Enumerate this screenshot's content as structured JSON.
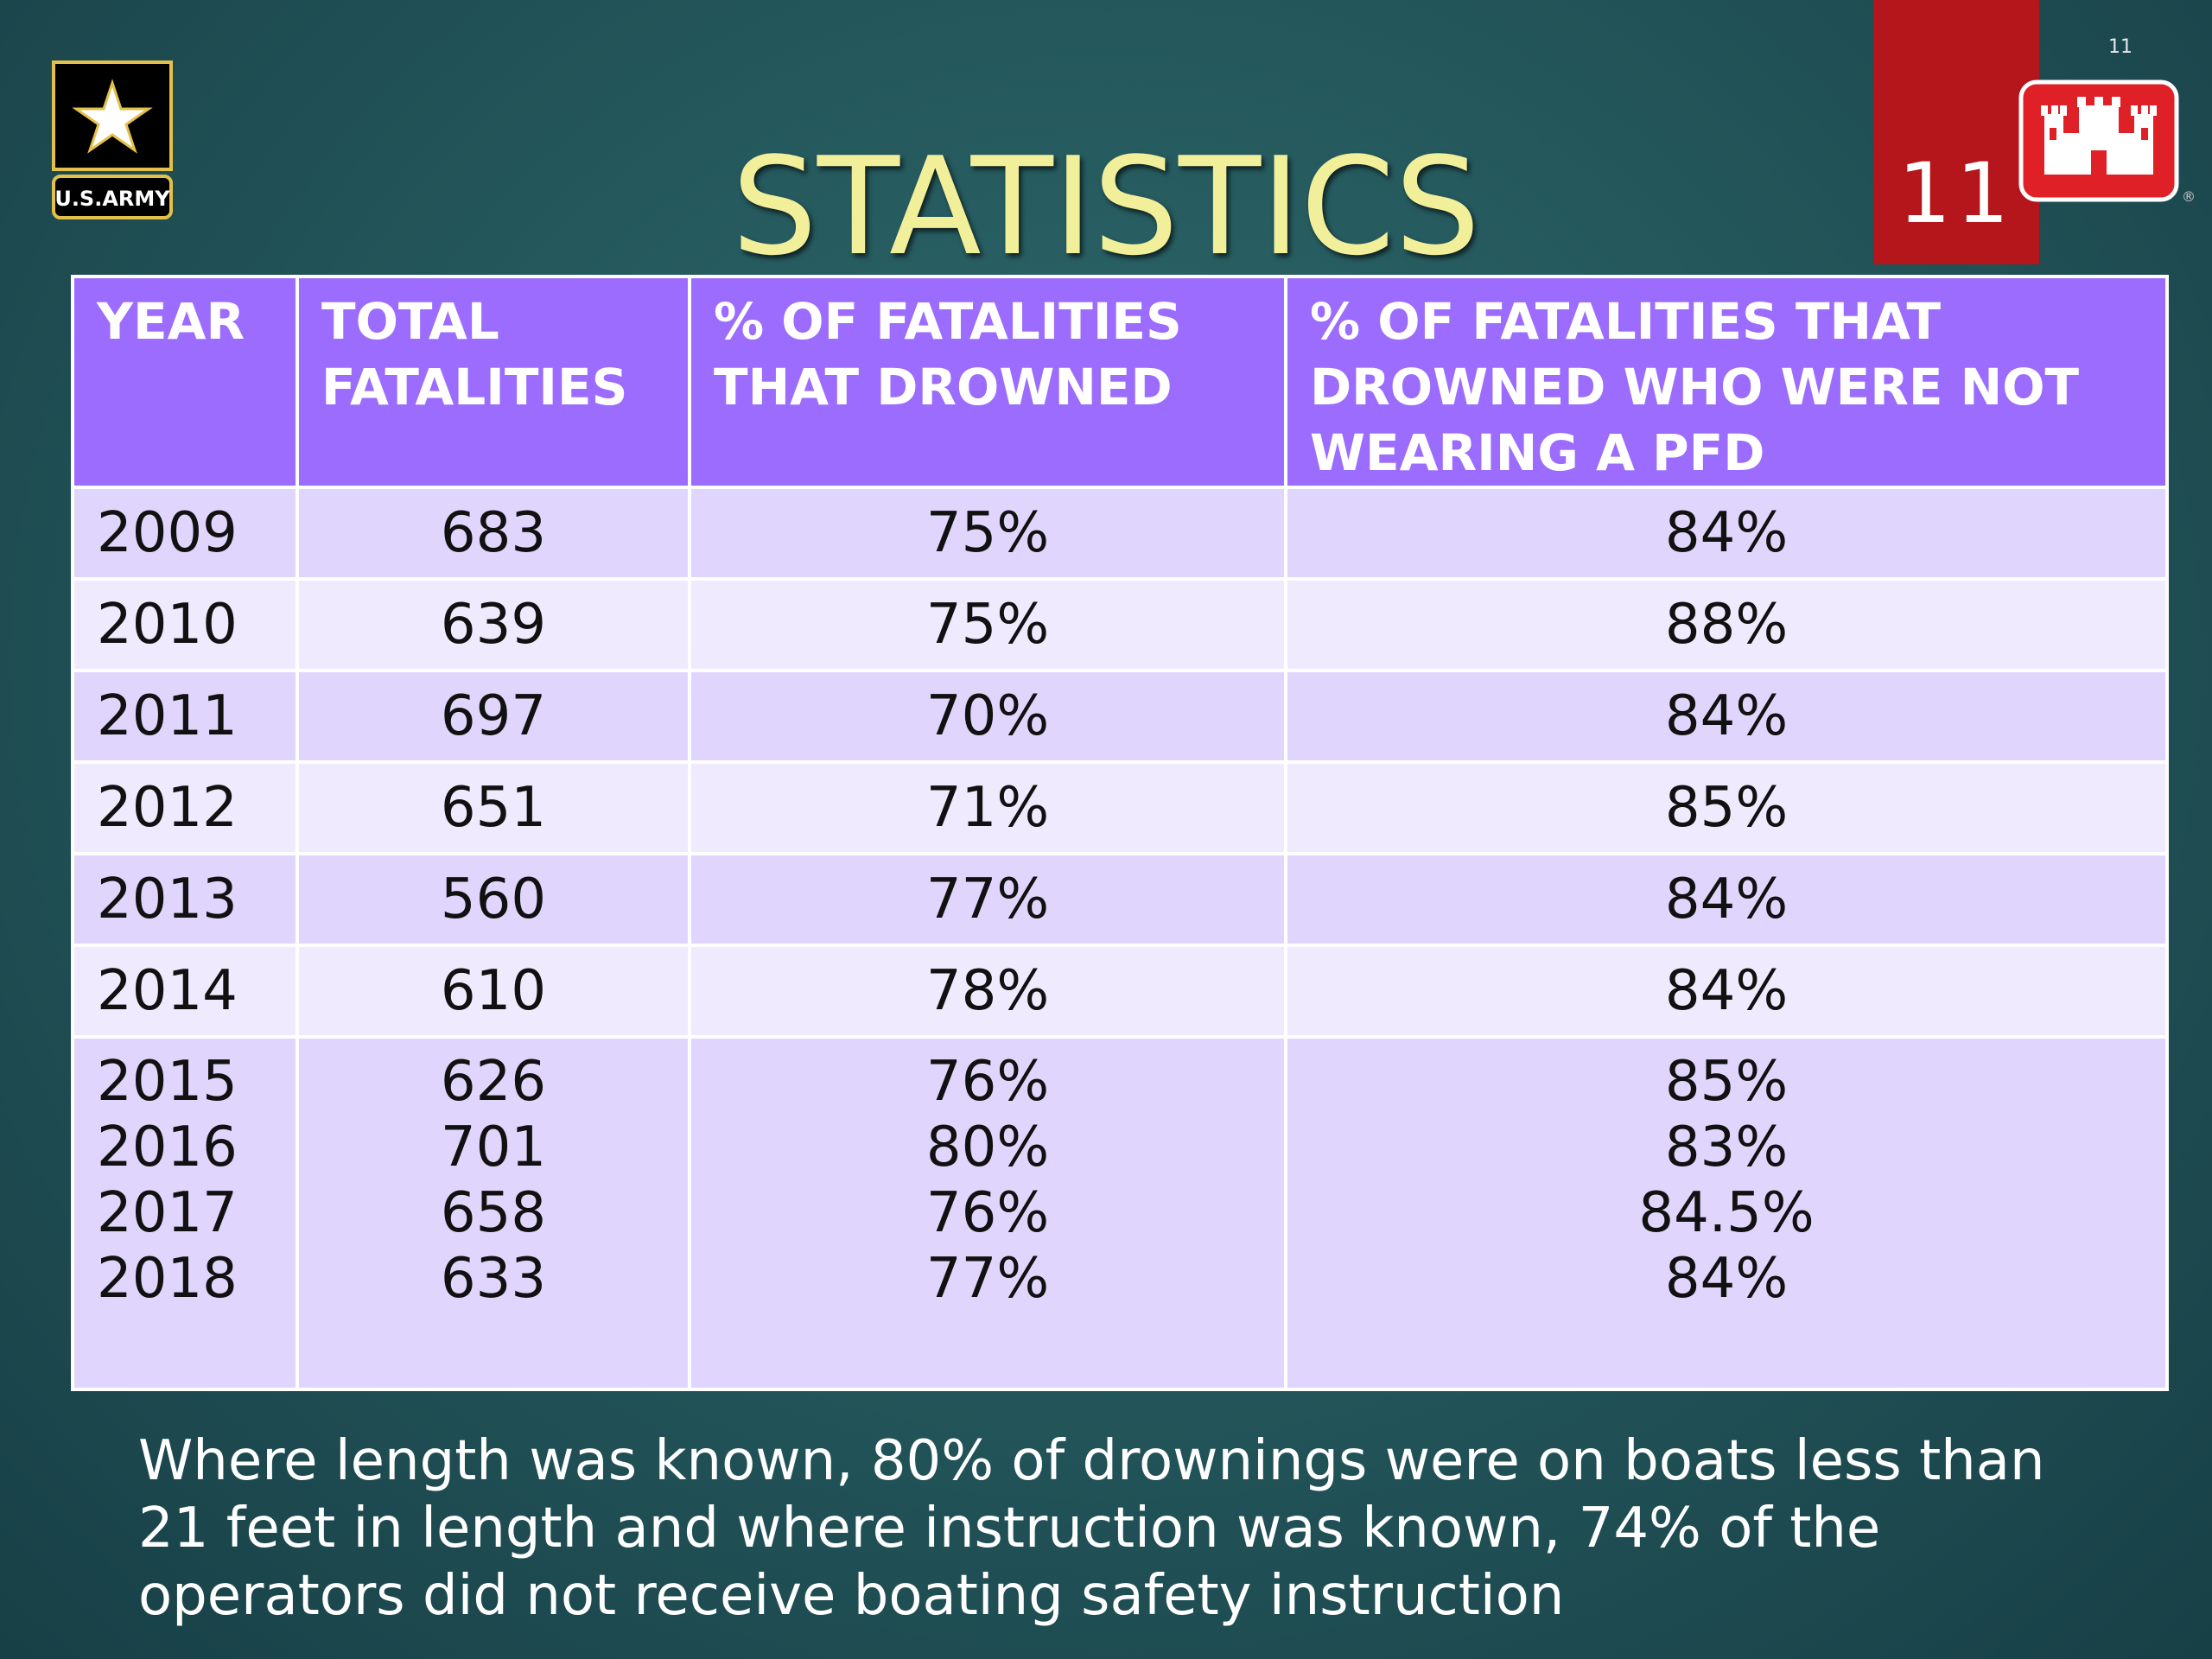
{
  "slide_number_small": "11",
  "slide_number_large": "11",
  "army_logo": {
    "icon": "army-star-icon",
    "text": "U.S.ARMY"
  },
  "castle_logo": {
    "icon": "castle-icon"
  },
  "title": "STATISTICS",
  "table": {
    "headers": [
      "YEAR",
      "TOTAL FATALITIES",
      "% OF FATALITIES THAT DROWNED",
      "% OF FATALITIES THAT DROWNED WHO WERE NOT WEARING A PFD"
    ],
    "rows": [
      {
        "year": "2009",
        "total": "683",
        "drowned": "75%",
        "no_pfd": "84%"
      },
      {
        "year": "2010",
        "total": "639",
        "drowned": "75%",
        "no_pfd": "88%"
      },
      {
        "year": "2011",
        "total": "697",
        "drowned": "70%",
        "no_pfd": "84%"
      },
      {
        "year": "2012",
        "total": "651",
        "drowned": "71%",
        "no_pfd": "85%"
      },
      {
        "year": "2013",
        "total": "560",
        "drowned": "77%",
        "no_pfd": "84%"
      },
      {
        "year": "2014",
        "total": "610",
        "drowned": "78%",
        "no_pfd": "84%"
      }
    ],
    "grouped_row": {
      "years": [
        "2015",
        "2016",
        "2017",
        "2018"
      ],
      "totals": [
        "626",
        "701",
        "658",
        "633"
      ],
      "drowned": [
        "76%",
        "80%",
        "76%",
        "77%"
      ],
      "no_pfd": [
        "85%",
        "83%",
        "84.5%",
        "84%"
      ]
    }
  },
  "footnote": "Where length was known, 80% of drownings were on boats less than 21 feet in length and where instruction was known, 74% of the operators did not receive boating safety instruction",
  "colors": {
    "header_bg": "#9b6cfd",
    "row_dark": "#e0d6fd",
    "row_light": "#efeafd",
    "title": "#f2ef9a",
    "red_block": "#b4161b"
  }
}
